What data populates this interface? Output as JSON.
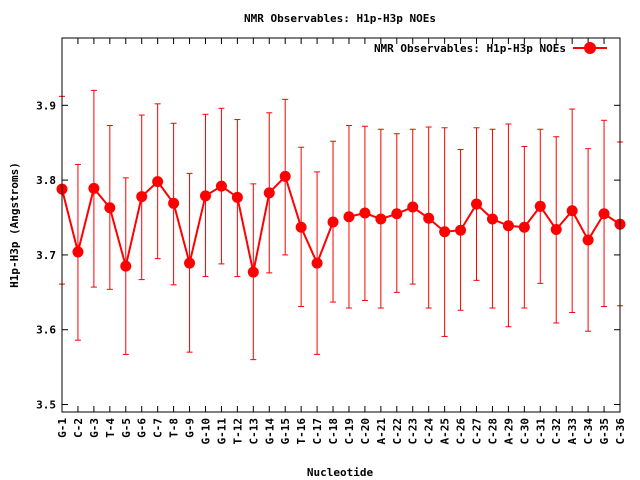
{
  "chart_data": {
    "type": "line",
    "title": "NMR Observables: H1p-H3p NOEs",
    "xlabel": "Nucleotide",
    "ylabel": "H1p-H3p (Angstroms)",
    "ylim": [
      3.49,
      3.99
    ],
    "yticks": [
      3.5,
      3.6,
      3.7,
      3.8,
      3.9
    ],
    "ytick_labels": [
      "3.5",
      "3.6",
      "3.7",
      "3.8",
      "3.9"
    ],
    "grid": false,
    "legend_position": "top-right",
    "color": "#ff0000",
    "categories": [
      "G-1",
      "C-2",
      "G-3",
      "T-4",
      "G-5",
      "G-6",
      "C-7",
      "T-8",
      "G-9",
      "G-10",
      "G-11",
      "T-12",
      "C-13",
      "G-14",
      "G-15",
      "T-16",
      "C-17",
      "C-18",
      "C-19",
      "C-20",
      "A-21",
      "C-22",
      "C-23",
      "C-24",
      "A-25",
      "C-26",
      "C-27",
      "C-28",
      "A-29",
      "C-30",
      "C-31",
      "C-32",
      "A-33",
      "C-34",
      "G-35",
      "C-36"
    ],
    "series": [
      {
        "name": "NMR Observables: H1p-H3p NOEs",
        "segments": [
          [
            0,
            17
          ],
          [
            18,
            35
          ]
        ],
        "values": [
          3.788,
          3.704,
          3.789,
          3.763,
          3.685,
          3.778,
          3.798,
          3.769,
          3.689,
          3.779,
          3.792,
          3.777,
          3.677,
          3.783,
          3.805,
          3.737,
          3.689,
          3.744,
          3.751,
          3.756,
          3.748,
          3.755,
          3.764,
          3.749,
          3.731,
          3.733,
          3.768,
          3.748,
          3.739,
          3.737,
          3.765,
          3.734,
          3.759,
          3.72,
          3.755,
          3.741
        ],
        "err_high": [
          3.912,
          3.821,
          3.92,
          3.873,
          3.803,
          3.887,
          3.902,
          3.876,
          3.809,
          3.888,
          3.896,
          3.881,
          3.795,
          3.89,
          3.908,
          3.844,
          3.811,
          3.852,
          3.873,
          3.872,
          3.868,
          3.862,
          3.868,
          3.871,
          3.87,
          3.841,
          3.87,
          3.868,
          3.875,
          3.845,
          3.868,
          3.858,
          3.895,
          3.842,
          3.88,
          3.851
        ],
        "err_low": [
          3.661,
          3.586,
          3.657,
          3.654,
          3.567,
          3.667,
          3.695,
          3.66,
          3.57,
          3.671,
          3.688,
          3.671,
          3.56,
          3.676,
          3.7,
          3.631,
          3.567,
          3.637,
          3.629,
          3.639,
          3.629,
          3.65,
          3.661,
          3.629,
          3.591,
          3.626,
          3.666,
          3.629,
          3.604,
          3.629,
          3.662,
          3.609,
          3.623,
          3.598,
          3.631,
          3.632
        ]
      }
    ]
  }
}
